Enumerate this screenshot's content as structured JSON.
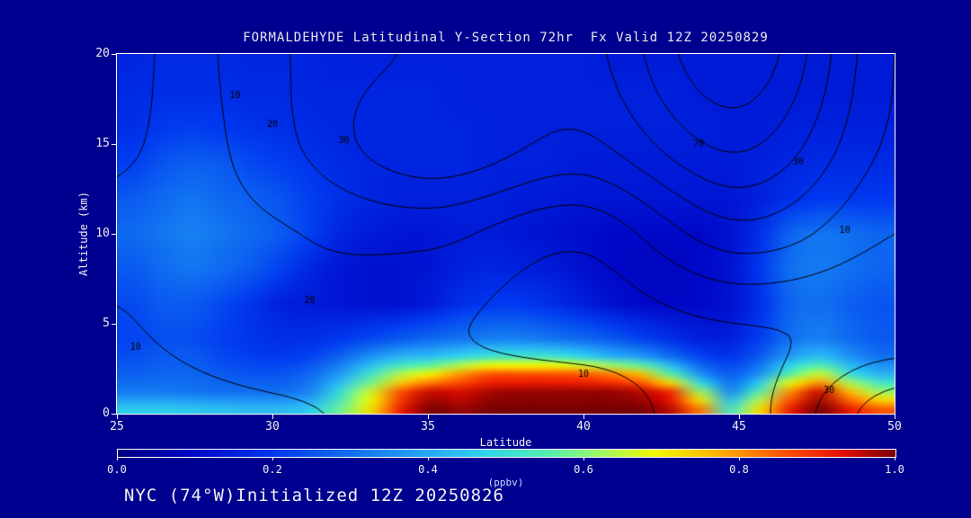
{
  "page": {
    "background": "#000090",
    "frame_color": "#ffffff",
    "text_color": "#f0f0f0"
  },
  "footer": {
    "text": "NYC (74°W)Initialized 12Z 20250826"
  },
  "colorbar": {
    "min": 0.0,
    "max": 1.0,
    "ticks": [
      "0.0",
      "0.2",
      "0.4",
      "0.6",
      "0.8",
      "1.0"
    ],
    "label": "(ppbv)"
  },
  "chart_data": {
    "type": "heatmap",
    "title": "FORMALDEHYDE Latitudinal Y-Section 72hr  Fx Valid 12Z 20250829",
    "xlabel": "Latitude",
    "ylabel": "Altitude (km)",
    "xlim": [
      25,
      50
    ],
    "ylim": [
      0,
      20
    ],
    "x_ticks": [
      25,
      30,
      35,
      40,
      45,
      50
    ],
    "y_ticks": [
      0,
      5,
      10,
      15,
      20
    ],
    "fill_units": "ppbv",
    "x": [
      25,
      26,
      27,
      28,
      29,
      30,
      31,
      32,
      33,
      34,
      35,
      36,
      37,
      38,
      39,
      40,
      41,
      42,
      43,
      44,
      45,
      46,
      47,
      48,
      49,
      50
    ],
    "y_levels": [
      0,
      1,
      2,
      3,
      4,
      6,
      8,
      10,
      12,
      14,
      16,
      18,
      20
    ],
    "fill_values": [
      [
        0.46,
        0.46,
        0.45,
        0.44,
        0.43,
        0.43,
        0.46,
        0.58,
        0.72,
        0.92,
        1.0,
        0.98,
        1.0,
        1.0,
        1.0,
        1.0,
        1.0,
        1.0,
        0.96,
        0.82,
        0.52,
        0.72,
        0.92,
        1.0,
        0.92,
        0.85
      ],
      [
        0.32,
        0.32,
        0.31,
        0.3,
        0.3,
        0.3,
        0.34,
        0.5,
        0.66,
        0.86,
        0.95,
        0.94,
        0.97,
        0.98,
        0.98,
        0.98,
        0.98,
        0.96,
        0.9,
        0.62,
        0.34,
        0.56,
        0.8,
        0.95,
        0.76,
        0.62
      ],
      [
        0.27,
        0.28,
        0.28,
        0.26,
        0.25,
        0.25,
        0.29,
        0.38,
        0.52,
        0.64,
        0.7,
        0.8,
        0.86,
        0.86,
        0.86,
        0.85,
        0.82,
        0.76,
        0.56,
        0.36,
        0.26,
        0.36,
        0.56,
        0.66,
        0.5,
        0.42
      ],
      [
        0.24,
        0.26,
        0.26,
        0.23,
        0.21,
        0.2,
        0.22,
        0.28,
        0.36,
        0.42,
        0.44,
        0.48,
        0.52,
        0.52,
        0.52,
        0.48,
        0.42,
        0.38,
        0.3,
        0.22,
        0.19,
        0.26,
        0.38,
        0.44,
        0.36,
        0.3
      ],
      [
        0.22,
        0.24,
        0.24,
        0.21,
        0.19,
        0.18,
        0.18,
        0.2,
        0.23,
        0.26,
        0.29,
        0.31,
        0.33,
        0.33,
        0.31,
        0.29,
        0.26,
        0.22,
        0.18,
        0.15,
        0.15,
        0.21,
        0.3,
        0.33,
        0.29,
        0.26
      ],
      [
        0.23,
        0.26,
        0.26,
        0.23,
        0.19,
        0.15,
        0.14,
        0.13,
        0.12,
        0.12,
        0.14,
        0.18,
        0.2,
        0.2,
        0.18,
        0.15,
        0.12,
        0.1,
        0.1,
        0.1,
        0.12,
        0.18,
        0.28,
        0.3,
        0.27,
        0.25
      ],
      [
        0.26,
        0.29,
        0.31,
        0.29,
        0.26,
        0.21,
        0.16,
        0.13,
        0.12,
        0.12,
        0.13,
        0.15,
        0.16,
        0.15,
        0.14,
        0.12,
        0.1,
        0.09,
        0.09,
        0.1,
        0.12,
        0.2,
        0.3,
        0.32,
        0.3,
        0.28
      ],
      [
        0.29,
        0.31,
        0.33,
        0.31,
        0.29,
        0.26,
        0.21,
        0.16,
        0.14,
        0.13,
        0.13,
        0.14,
        0.14,
        0.13,
        0.12,
        0.11,
        0.1,
        0.1,
        0.1,
        0.1,
        0.12,
        0.18,
        0.28,
        0.31,
        0.3,
        0.28
      ],
      [
        0.26,
        0.29,
        0.31,
        0.29,
        0.27,
        0.25,
        0.21,
        0.18,
        0.16,
        0.15,
        0.15,
        0.15,
        0.15,
        0.14,
        0.14,
        0.13,
        0.13,
        0.13,
        0.13,
        0.13,
        0.13,
        0.15,
        0.18,
        0.2,
        0.2,
        0.2
      ],
      [
        0.21,
        0.25,
        0.27,
        0.26,
        0.23,
        0.21,
        0.19,
        0.17,
        0.16,
        0.16,
        0.16,
        0.16,
        0.15,
        0.15,
        0.15,
        0.14,
        0.14,
        0.14,
        0.14,
        0.14,
        0.14,
        0.15,
        0.16,
        0.17,
        0.17,
        0.17
      ],
      [
        0.18,
        0.2,
        0.21,
        0.2,
        0.19,
        0.18,
        0.17,
        0.16,
        0.16,
        0.16,
        0.16,
        0.16,
        0.15,
        0.15,
        0.15,
        0.15,
        0.15,
        0.15,
        0.15,
        0.15,
        0.14,
        0.14,
        0.15,
        0.15,
        0.15,
        0.15
      ],
      [
        0.17,
        0.18,
        0.18,
        0.18,
        0.17,
        0.17,
        0.16,
        0.16,
        0.16,
        0.16,
        0.16,
        0.15,
        0.15,
        0.15,
        0.15,
        0.15,
        0.15,
        0.15,
        0.15,
        0.14,
        0.14,
        0.14,
        0.14,
        0.14,
        0.14,
        0.14
      ],
      [
        0.16,
        0.17,
        0.17,
        0.17,
        0.16,
        0.16,
        0.16,
        0.15,
        0.15,
        0.15,
        0.15,
        0.15,
        0.15,
        0.15,
        0.15,
        0.15,
        0.14,
        0.14,
        0.14,
        0.14,
        0.14,
        0.14,
        0.14,
        0.14,
        0.14,
        0.14
      ]
    ],
    "colormap": [
      [
        0.0,
        "#000080"
      ],
      [
        0.1,
        "#0008c8"
      ],
      [
        0.2,
        "#0038f0"
      ],
      [
        0.3,
        "#1070f0"
      ],
      [
        0.4,
        "#28a8f8"
      ],
      [
        0.48,
        "#30d8e8"
      ],
      [
        0.56,
        "#58f0a8"
      ],
      [
        0.63,
        "#a8f858"
      ],
      [
        0.69,
        "#f0f800"
      ],
      [
        0.77,
        "#ffb400"
      ],
      [
        0.85,
        "#ff5800"
      ],
      [
        0.93,
        "#e81000"
      ],
      [
        1.0,
        "#780000"
      ]
    ],
    "contour_overlay": {
      "x": [
        25,
        30,
        35,
        40,
        45,
        50
      ],
      "y": [
        0,
        5,
        10,
        15,
        20
      ],
      "values": [
        [
          4,
          8,
          14,
          16,
          6,
          36
        ],
        [
          9,
          19,
          12,
          6,
          10,
          12
        ],
        [
          13,
          19,
          23,
          13,
          36,
          20
        ],
        [
          8,
          26,
          48,
          38,
          62,
          28
        ],
        [
          6,
          28,
          42,
          46,
          78,
          30
        ]
      ],
      "levels": [
        10,
        20,
        30,
        40,
        50,
        60,
        70
      ],
      "line_color": "#000000",
      "labels": [
        {
          "text": "10",
          "lat": 28.8,
          "alt": 17.7
        },
        {
          "text": "20",
          "lat": 30.0,
          "alt": 16.1
        },
        {
          "text": "30",
          "lat": 32.3,
          "alt": 15.2
        },
        {
          "text": "70",
          "lat": 43.7,
          "alt": 15.0
        },
        {
          "text": "30",
          "lat": 46.9,
          "alt": 14.0
        },
        {
          "text": "10",
          "lat": 48.4,
          "alt": 10.2
        },
        {
          "text": "20",
          "lat": 31.2,
          "alt": 6.3
        },
        {
          "text": "10",
          "lat": 25.6,
          "alt": 3.7
        },
        {
          "text": "10",
          "lat": 40.0,
          "alt": 2.2
        },
        {
          "text": "30",
          "lat": 47.9,
          "alt": 1.3
        }
      ]
    }
  }
}
